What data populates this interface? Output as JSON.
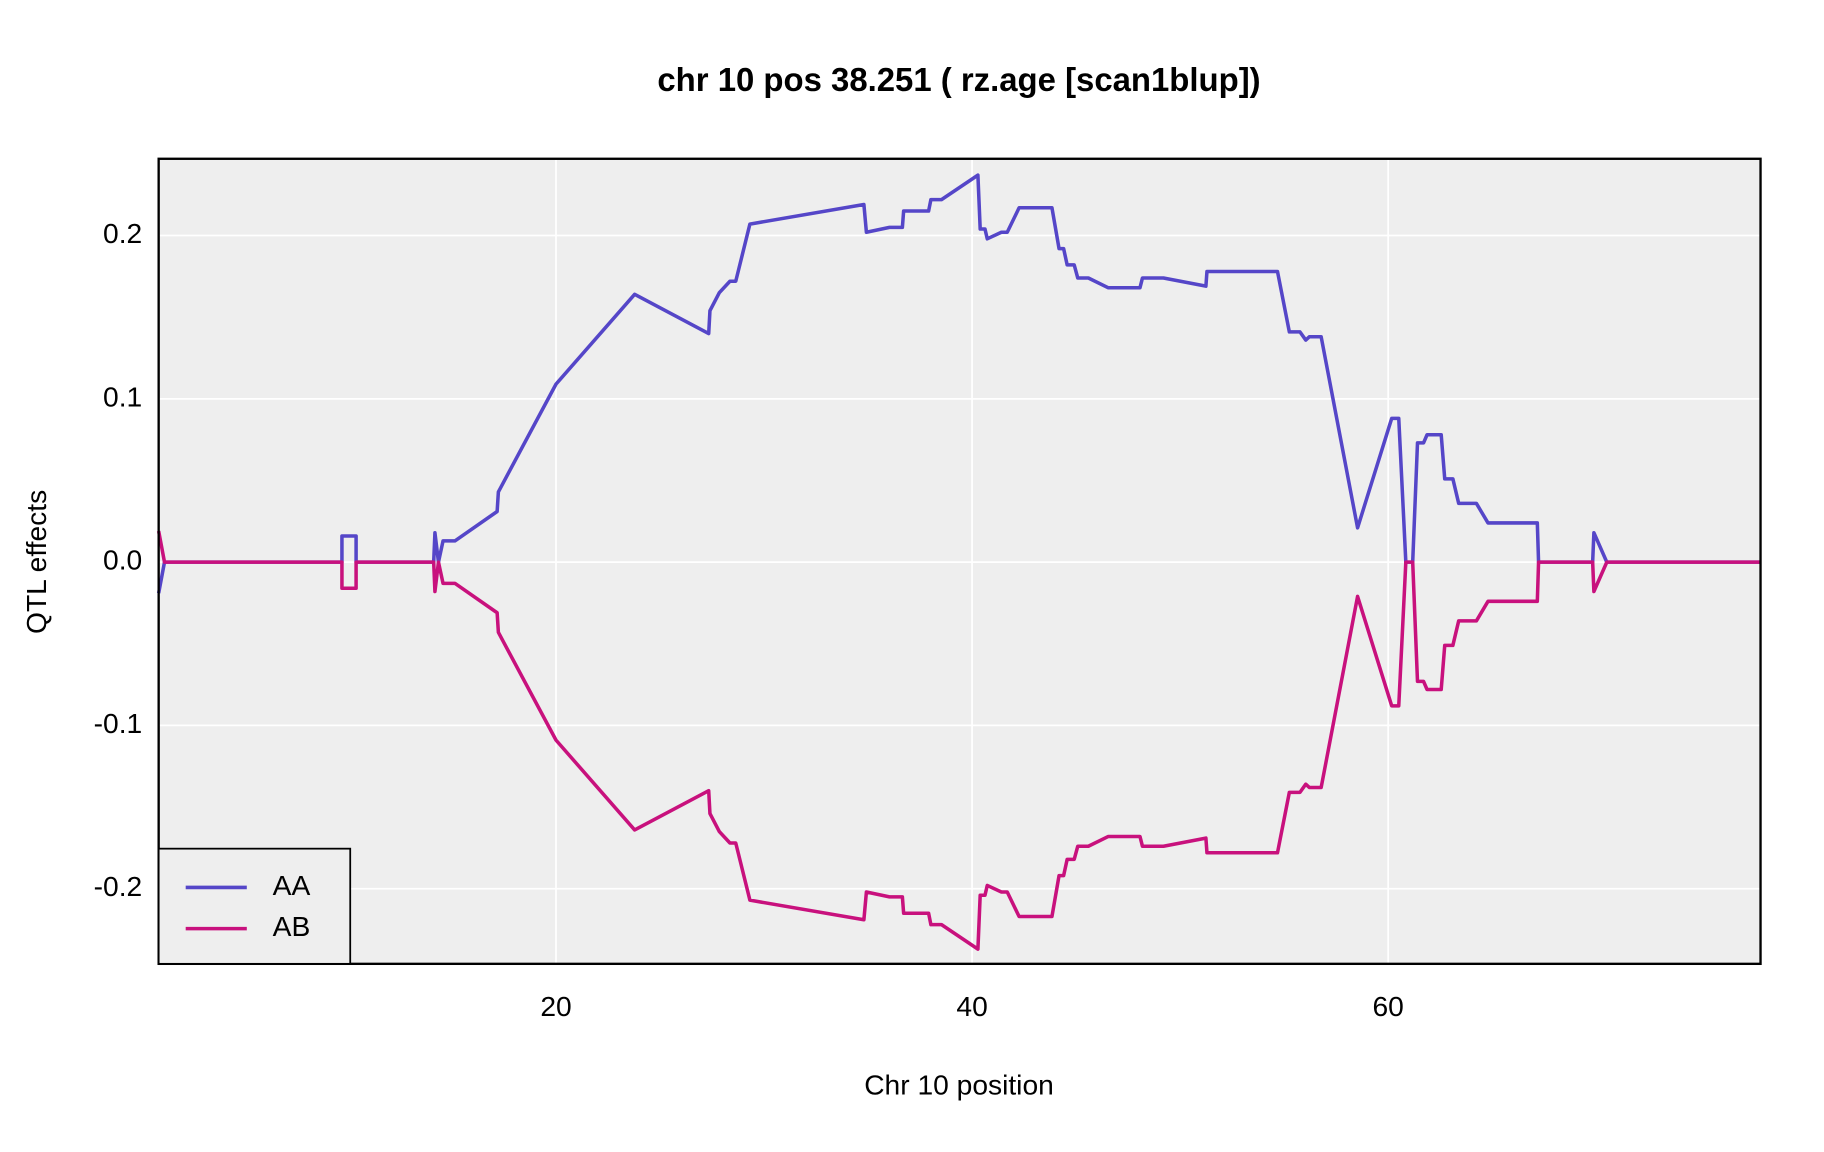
{
  "chart_data": {
    "type": "line",
    "title": "chr 10 pos 38.251 ( rz.age  [scan1blup])",
    "xlabel": "Chr 10 position",
    "ylabel": "QTL effects",
    "x": [
      0.9,
      1.18,
      9.71,
      9.71,
      10.39,
      10.39,
      14.12,
      14.18,
      14.35,
      14.57,
      15.14,
      17.17,
      17.23,
      20.0,
      23.78,
      27.34,
      27.4,
      27.85,
      28.36,
      28.64,
      29.32,
      34.8,
      34.92,
      36.03,
      36.65,
      36.71,
      37.91,
      38.02,
      38.53,
      40.28,
      40.39,
      40.62,
      40.73,
      41.41,
      41.69,
      42.26,
      43.84,
      44.18,
      44.4,
      44.57,
      44.91,
      45.08,
      45.59,
      46.55,
      48.07,
      48.19,
      49.2,
      51.24,
      51.29,
      54.68,
      55.25,
      55.76,
      56.04,
      56.21,
      56.78,
      58.53,
      60.17,
      60.51,
      60.85,
      61.18,
      61.41,
      61.7,
      61.87,
      62.55,
      62.72,
      63.11,
      63.39,
      64.24,
      64.8,
      67.17,
      67.23,
      69.83,
      69.89,
      70.51,
      77.9
    ],
    "series": [
      {
        "name": "AA",
        "color": "#5546c8",
        "values": [
          -0.019,
          0.0,
          0.0,
          0.016,
          0.016,
          0.0,
          0.0,
          0.018,
          0.0,
          0.013,
          0.013,
          0.031,
          0.043,
          0.109,
          0.164,
          0.14,
          0.154,
          0.165,
          0.172,
          0.172,
          0.207,
          0.219,
          0.202,
          0.205,
          0.205,
          0.215,
          0.215,
          0.222,
          0.222,
          0.237,
          0.204,
          0.204,
          0.198,
          0.202,
          0.202,
          0.217,
          0.217,
          0.192,
          0.192,
          0.182,
          0.182,
          0.174,
          0.174,
          0.168,
          0.168,
          0.174,
          0.174,
          0.169,
          0.178,
          0.178,
          0.141,
          0.141,
          0.136,
          0.138,
          0.138,
          0.021,
          0.088,
          0.088,
          0.0,
          0.0,
          0.073,
          0.073,
          0.078,
          0.078,
          0.051,
          0.051,
          0.036,
          0.036,
          0.024,
          0.024,
          0.0,
          0.0,
          0.018,
          0.0,
          0.0
        ]
      },
      {
        "name": "AB",
        "color": "#c8117d",
        "values": [
          0.019,
          0.0,
          0.0,
          -0.016,
          -0.016,
          0.0,
          0.0,
          -0.018,
          0.0,
          -0.013,
          -0.013,
          -0.031,
          -0.043,
          -0.109,
          -0.164,
          -0.14,
          -0.154,
          -0.165,
          -0.172,
          -0.172,
          -0.207,
          -0.219,
          -0.202,
          -0.205,
          -0.205,
          -0.215,
          -0.215,
          -0.222,
          -0.222,
          -0.237,
          -0.204,
          -0.204,
          -0.198,
          -0.202,
          -0.202,
          -0.217,
          -0.217,
          -0.192,
          -0.192,
          -0.182,
          -0.182,
          -0.174,
          -0.174,
          -0.168,
          -0.168,
          -0.174,
          -0.174,
          -0.169,
          -0.178,
          -0.178,
          -0.141,
          -0.141,
          -0.136,
          -0.138,
          -0.138,
          -0.021,
          -0.088,
          -0.088,
          0.0,
          0.0,
          -0.073,
          -0.073,
          -0.078,
          -0.078,
          -0.051,
          -0.051,
          -0.036,
          -0.036,
          -0.024,
          -0.024,
          0.0,
          0.0,
          -0.018,
          0.0,
          0.0
        ]
      }
    ],
    "xlim": [
      0.9,
      77.9
    ],
    "ylim": [
      -0.246,
      0.247
    ],
    "xticks": [
      20,
      40,
      60
    ],
    "yticks": [
      -0.2,
      -0.1,
      {
        "value": 0,
        "label": "0.0"
      },
      0.1,
      0.2
    ],
    "grid": true,
    "legend": "bottom-left"
  }
}
